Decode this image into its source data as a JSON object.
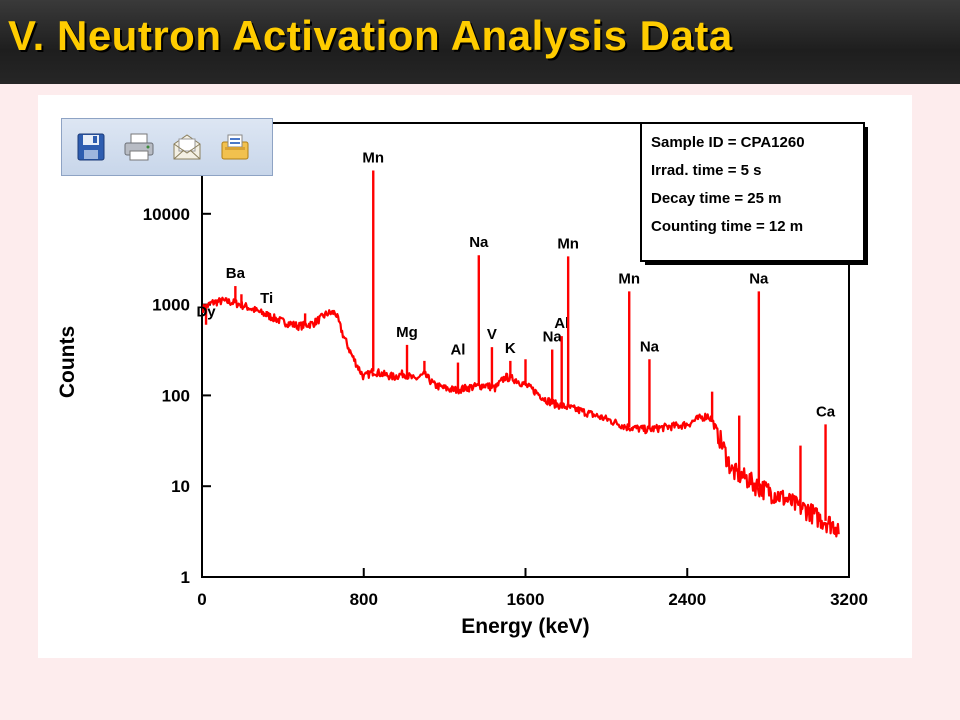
{
  "slide": {
    "title": "V. Neutron Activation Analysis Data"
  },
  "toolbar": {
    "buttons": [
      {
        "icon": "save-icon"
      },
      {
        "icon": "print-icon"
      },
      {
        "icon": "email-icon"
      },
      {
        "icon": "export-icon"
      }
    ]
  },
  "chart_data": {
    "type": "line",
    "xlabel": "Energy (keV)",
    "ylabel": "Counts",
    "xlim": [
      0,
      3200
    ],
    "ylim": [
      1,
      100000
    ],
    "y_scale": "log",
    "x_ticks": [
      "0",
      "800",
      "1600",
      "2400",
      "3200"
    ],
    "x_tick_values": [
      0,
      800,
      1600,
      2400,
      3200
    ],
    "y_ticks": [
      "1",
      "10",
      "100",
      "1000",
      "10000"
    ],
    "y_tick_values": [
      1,
      10,
      100,
      1000,
      10000
    ],
    "line_color": "#ff0000",
    "info_box": {
      "lines": [
        "Sample ID = CPA1260",
        "Irrad. time      =   5 s",
        "Decay time      = 25 m",
        "Counting time = 12 m"
      ]
    },
    "series": [
      {
        "baseline": {
          "x": [
            5,
            50,
            100,
            160,
            220,
            300,
            400,
            480,
            550,
            620,
            660,
            700,
            740,
            780,
            800,
            850,
            900,
            950,
            1000,
            1050,
            1100,
            1150,
            1200,
            1250,
            1300,
            1350,
            1400,
            1450,
            1500,
            1550,
            1600,
            1650,
            1700,
            1750,
            1800,
            1850,
            1900,
            2000,
            2100,
            2200,
            2300,
            2400,
            2450,
            2500,
            2520,
            2560,
            2620,
            2700,
            2750,
            2800,
            2850,
            2900,
            2950,
            3000,
            3050,
            3100,
            3150
          ],
          "y": [
            900,
            1050,
            1100,
            1050,
            950,
            800,
            650,
            580,
            620,
            800,
            820,
            450,
            280,
            190,
            160,
            185,
            170,
            160,
            175,
            150,
            170,
            130,
            120,
            115,
            120,
            125,
            130,
            120,
            160,
            150,
            130,
            110,
            90,
            80,
            75,
            70,
            65,
            55,
            45,
            42,
            45,
            48,
            55,
            60,
            55,
            35,
            15,
            12,
            10,
            9,
            8,
            7,
            6,
            5.5,
            4.5,
            4,
            3.5
          ]
        },
        "peaks": [
          {
            "energy": 20,
            "counts": 600,
            "label": "Dy"
          },
          {
            "energy": 165,
            "counts": 1600,
            "label": "Ba"
          },
          {
            "energy": 195,
            "counts": 1300,
            "label": ""
          },
          {
            "energy": 320,
            "counts": 850,
            "label": "Ti"
          },
          {
            "energy": 510,
            "counts": 800,
            "label": ""
          },
          {
            "energy": 847,
            "counts": 30000,
            "label": "Mn"
          },
          {
            "energy": 1014,
            "counts": 360,
            "label": "Mg"
          },
          {
            "energy": 1100,
            "counts": 240,
            "label": ""
          },
          {
            "energy": 1266,
            "counts": 230,
            "label": "Al"
          },
          {
            "energy": 1369,
            "counts": 3500,
            "label": "Na"
          },
          {
            "energy": 1434,
            "counts": 340,
            "label": "V"
          },
          {
            "energy": 1525,
            "counts": 240,
            "label": "K"
          },
          {
            "energy": 1600,
            "counts": 250,
            "label": ""
          },
          {
            "energy": 1732,
            "counts": 320,
            "label": "Na"
          },
          {
            "energy": 1779,
            "counts": 450,
            "label": "Al"
          },
          {
            "energy": 1811,
            "counts": 3400,
            "label": "Mn"
          },
          {
            "energy": 2113,
            "counts": 1400,
            "label": "Mn"
          },
          {
            "energy": 2213,
            "counts": 250,
            "label": "Na"
          },
          {
            "energy": 2523,
            "counts": 110,
            "label": ""
          },
          {
            "energy": 2657,
            "counts": 60,
            "label": ""
          },
          {
            "energy": 2754,
            "counts": 1400,
            "label": "Na"
          },
          {
            "energy": 2960,
            "counts": 28,
            "label": ""
          },
          {
            "energy": 3084,
            "counts": 48,
            "label": "Ca"
          }
        ]
      }
    ]
  }
}
